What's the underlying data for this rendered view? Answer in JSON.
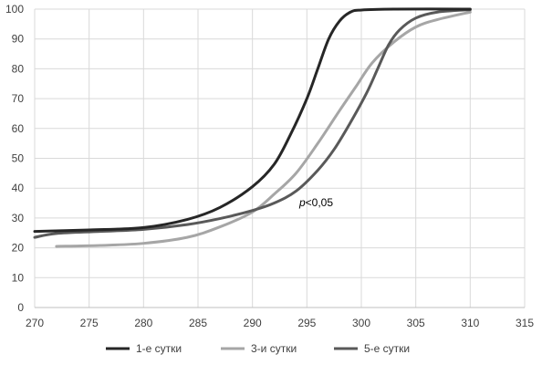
{
  "chart_data": {
    "type": "line",
    "xlim": [
      270,
      315
    ],
    "ylim": [
      0,
      100
    ],
    "x_ticks": [
      270,
      275,
      280,
      285,
      290,
      295,
      300,
      305,
      310,
      315
    ],
    "y_ticks": [
      0,
      10,
      20,
      30,
      40,
      50,
      60,
      70,
      80,
      90,
      100
    ],
    "grid": true,
    "legend_position": "bottom-center",
    "annotation": {
      "prefix": "p",
      "text": "<0,05",
      "x": 294.3,
      "y": 34
    },
    "series": [
      {
        "name": "1-е сутки",
        "color": "#262626",
        "points": [
          [
            270,
            25.5
          ],
          [
            275,
            26
          ],
          [
            280,
            26.8
          ],
          [
            284,
            29.5
          ],
          [
            287,
            33.5
          ],
          [
            290,
            40.5
          ],
          [
            292,
            48
          ],
          [
            293.5,
            58
          ],
          [
            295,
            70
          ],
          [
            296,
            80
          ],
          [
            297,
            90
          ],
          [
            298,
            96
          ],
          [
            299,
            99
          ],
          [
            300,
            99.7
          ],
          [
            303,
            100
          ],
          [
            310,
            100
          ]
        ]
      },
      {
        "name": "3-и сутки",
        "color": "#a6a6a6",
        "points": [
          [
            272,
            20.5
          ],
          [
            276,
            20.8
          ],
          [
            280,
            21.5
          ],
          [
            284,
            23.5
          ],
          [
            287,
            27
          ],
          [
            290,
            32
          ],
          [
            292,
            38
          ],
          [
            294,
            45
          ],
          [
            296,
            55
          ],
          [
            298,
            66
          ],
          [
            299.5,
            74
          ],
          [
            301,
            82
          ],
          [
            303,
            89
          ],
          [
            305,
            94
          ],
          [
            307,
            96.5
          ],
          [
            310,
            99
          ]
        ]
      },
      {
        "name": "5-е сутки",
        "color": "#595959",
        "points": [
          [
            270,
            23.5
          ],
          [
            272,
            24.8
          ],
          [
            276,
            25.5
          ],
          [
            280,
            26.2
          ],
          [
            284,
            27.8
          ],
          [
            287,
            29.8
          ],
          [
            290,
            32.5
          ],
          [
            292,
            35
          ],
          [
            294,
            39
          ],
          [
            296,
            46
          ],
          [
            297.5,
            53
          ],
          [
            299,
            62
          ],
          [
            300.5,
            72
          ],
          [
            301.5,
            80
          ],
          [
            302.5,
            88
          ],
          [
            303.5,
            93
          ],
          [
            305,
            97
          ],
          [
            307,
            99
          ],
          [
            310,
            99.8
          ]
        ]
      }
    ]
  }
}
